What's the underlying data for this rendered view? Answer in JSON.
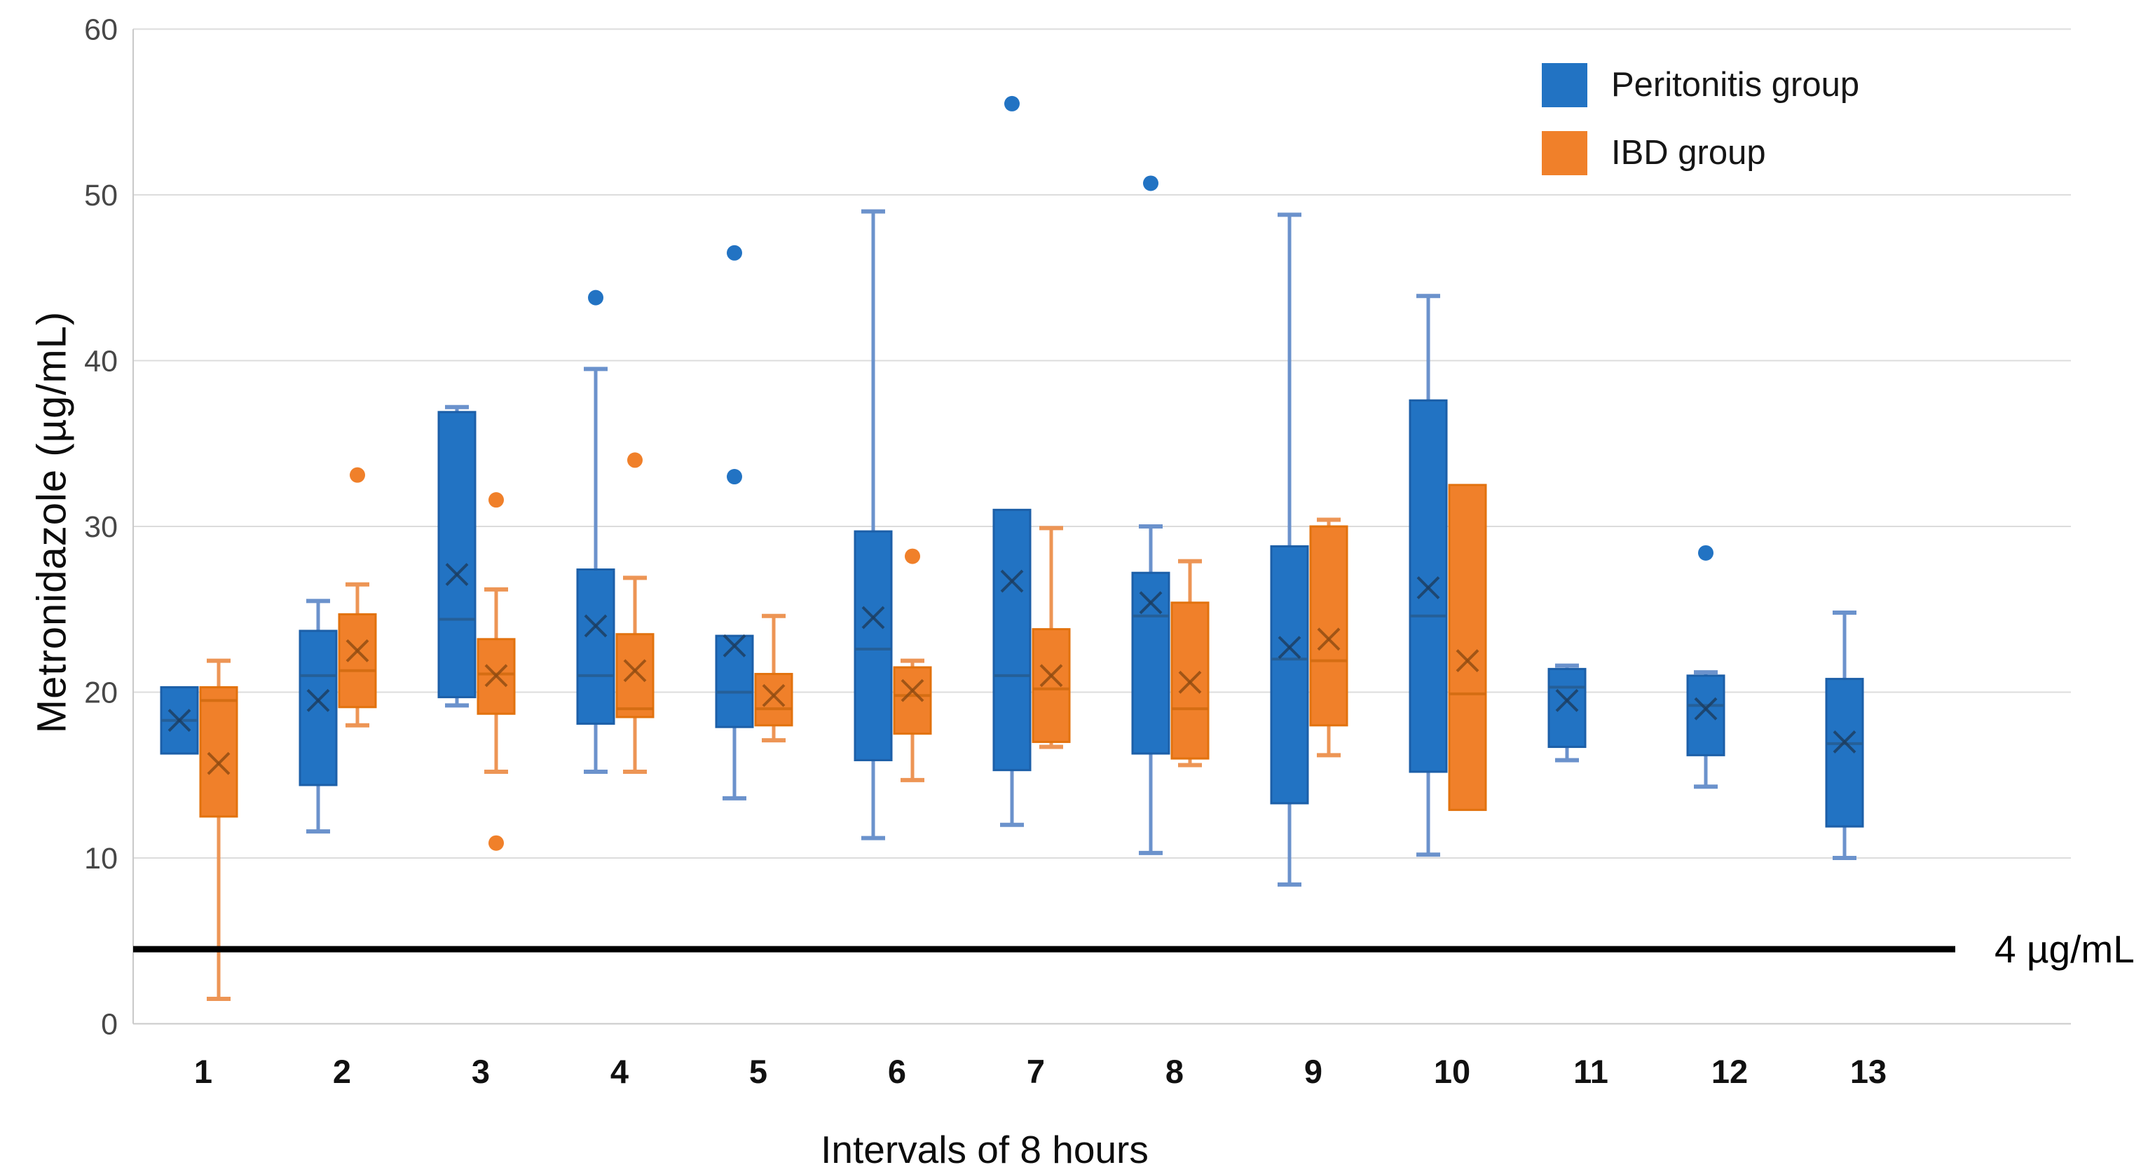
{
  "chart_data": {
    "type": "boxplot",
    "title": "",
    "xlabel": "Intervals of 8 hours",
    "ylabel": "Metronidazole (µg/mL)",
    "ylim": [
      0,
      60
    ],
    "y_ticks": [
      0,
      10,
      20,
      30,
      40,
      50,
      60
    ],
    "grid": true,
    "legend_position": "top-right",
    "categories": [
      "1",
      "2",
      "3",
      "4",
      "5",
      "6",
      "7",
      "8",
      "9",
      "10",
      "11",
      "12",
      "13"
    ],
    "threshold": {
      "value": 4.5,
      "label": "4 µg/mL",
      "color": "#000000"
    },
    "series": [
      {
        "name": "Peritonitis group",
        "color": "#2273C3",
        "stroke": "#1C5FA8",
        "whisker_color": "#6B92CC",
        "median_color": "#265D94",
        "mean_color": "#1D3C5E",
        "boxes": [
          {
            "lo": null,
            "q1": 16.3,
            "med": 18.3,
            "q3": 20.3,
            "hi": null,
            "mean": 18.3,
            "outliers": []
          },
          {
            "lo": 11.6,
            "q1": 14.4,
            "med": 21.0,
            "q3": 23.7,
            "hi": 25.5,
            "mean": 19.5,
            "outliers": []
          },
          {
            "lo": 19.2,
            "q1": 19.7,
            "med": 24.4,
            "q3": 36.9,
            "hi": 37.2,
            "mean": 27.1,
            "outliers": []
          },
          {
            "lo": 15.2,
            "q1": 18.1,
            "med": 21.0,
            "q3": 27.4,
            "hi": 39.5,
            "mean": 24.0,
            "outliers": [
              43.8
            ]
          },
          {
            "lo": 13.6,
            "q1": 17.9,
            "med": 20.0,
            "q3": 23.4,
            "hi": null,
            "mean": 22.8,
            "outliers": [
              46.5,
              33.0
            ]
          },
          {
            "lo": 11.2,
            "q1": 15.9,
            "med": 22.6,
            "q3": 29.7,
            "hi": 49.0,
            "mean": 24.5,
            "outliers": []
          },
          {
            "lo": 12.0,
            "q1": 15.3,
            "med": 21.0,
            "q3": 31.0,
            "hi": null,
            "mean": 26.7,
            "outliers": [
              55.5
            ]
          },
          {
            "lo": 10.3,
            "q1": 16.3,
            "med": 24.6,
            "q3": 27.2,
            "hi": 30.0,
            "mean": 25.4,
            "outliers": [
              50.7
            ]
          },
          {
            "lo": 8.4,
            "q1": 13.3,
            "med": 22.0,
            "q3": 28.8,
            "hi": 48.8,
            "mean": 22.7,
            "outliers": []
          },
          {
            "lo": 10.2,
            "q1": 15.2,
            "med": 24.6,
            "q3": 37.6,
            "hi": 43.9,
            "mean": 26.3,
            "outliers": []
          },
          {
            "lo": 15.9,
            "q1": 16.7,
            "med": 20.3,
            "q3": 21.4,
            "hi": 21.6,
            "mean": 19.5,
            "outliers": []
          },
          {
            "lo": 14.3,
            "q1": 16.2,
            "med": 19.2,
            "q3": 21.0,
            "hi": 21.2,
            "mean": 19.0,
            "outliers": [
              28.4
            ]
          },
          {
            "lo": 10.0,
            "q1": 11.9,
            "med": 16.9,
            "q3": 20.8,
            "hi": 24.8,
            "mean": 17.0,
            "outliers": []
          }
        ]
      },
      {
        "name": "IBD group",
        "color": "#F0802A",
        "stroke": "#E2720E",
        "whisker_color": "#ED9555",
        "median_color": "#D26A11",
        "mean_color": "#8D4A12",
        "boxes": [
          {
            "lo": 1.5,
            "q1": 12.5,
            "med": 19.5,
            "q3": 20.3,
            "hi": 21.9,
            "mean": 15.7,
            "outliers": []
          },
          {
            "lo": 18.0,
            "q1": 19.1,
            "med": 21.3,
            "q3": 24.7,
            "hi": 26.5,
            "mean": 22.5,
            "outliers": [
              33.1
            ]
          },
          {
            "lo": 15.2,
            "q1": 18.7,
            "med": 21.1,
            "q3": 23.2,
            "hi": 26.2,
            "mean": 21.0,
            "outliers": [
              31.6,
              10.9
            ]
          },
          {
            "lo": 15.2,
            "q1": 18.5,
            "med": 19.0,
            "q3": 23.5,
            "hi": 26.9,
            "mean": 21.3,
            "outliers": [
              34.0
            ]
          },
          {
            "lo": 17.1,
            "q1": 18.0,
            "med": 19.0,
            "q3": 21.1,
            "hi": 24.6,
            "mean": 19.8,
            "outliers": []
          },
          {
            "lo": 14.7,
            "q1": 17.5,
            "med": 19.8,
            "q3": 21.5,
            "hi": 21.9,
            "mean": 20.1,
            "outliers": [
              28.2
            ]
          },
          {
            "lo": 16.7,
            "q1": 17.0,
            "med": 20.2,
            "q3": 23.8,
            "hi": 29.9,
            "mean": 21.0,
            "outliers": []
          },
          {
            "lo": 15.6,
            "q1": 16.0,
            "med": 19.0,
            "q3": 25.4,
            "hi": 27.9,
            "mean": 20.6,
            "outliers": []
          },
          {
            "lo": 16.2,
            "q1": 18.0,
            "med": 21.9,
            "q3": 30.0,
            "hi": 30.4,
            "mean": 23.2,
            "outliers": []
          },
          {
            "lo": null,
            "q1": 12.9,
            "med": 19.9,
            "q3": 32.5,
            "hi": null,
            "mean": 21.9,
            "outliers": []
          },
          null,
          null,
          null
        ]
      }
    ]
  }
}
